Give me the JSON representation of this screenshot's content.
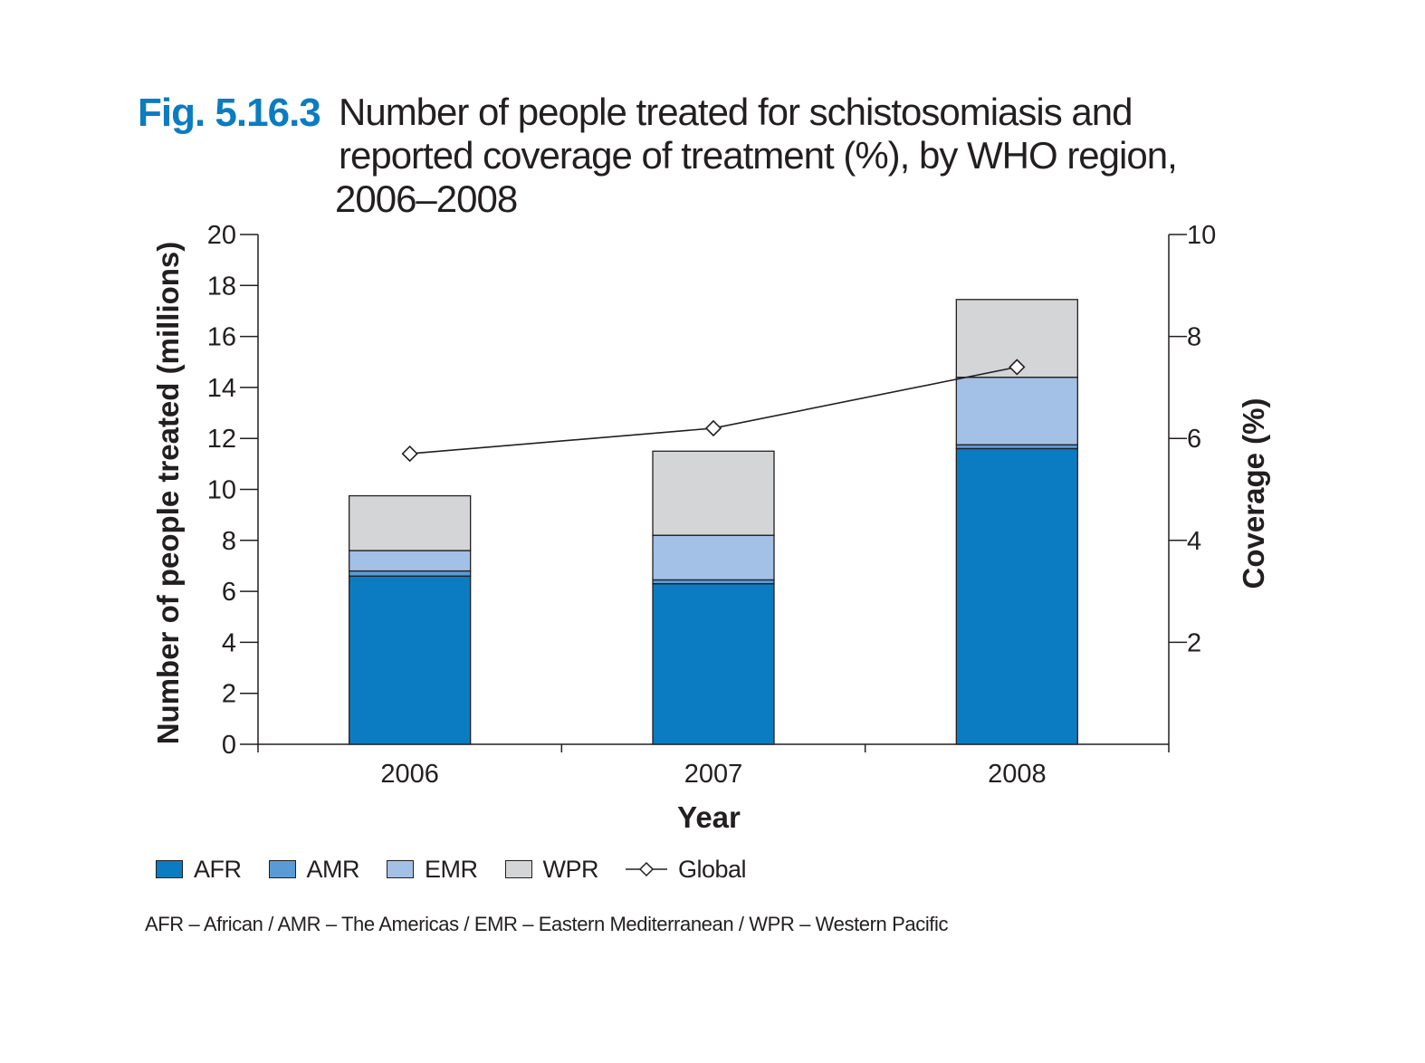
{
  "figure": {
    "label": "Fig. 5.16.3",
    "title_lines": [
      "Number of people treated for schistosomiasis and",
      "reported coverage of treatment (%), by WHO region,",
      "2006–2008"
    ]
  },
  "legend": [
    {
      "name": "AFR",
      "color": "#0b7cc1"
    },
    {
      "name": "AMR",
      "color": "#5b9bd5"
    },
    {
      "name": "EMR",
      "color": "#a3c0e6"
    },
    {
      "name": "WPR",
      "color": "#d4d5d7"
    },
    {
      "name": "Global",
      "marker": "diamond-line-icon"
    }
  ],
  "footnote": "AFR – African / AMR – The Americas / EMR – Eastern Mediterranean / WPR – Western Pacific",
  "chart_data": {
    "type": "bar",
    "stacked": true,
    "categories": [
      "2006",
      "2007",
      "2008"
    ],
    "series": [
      {
        "name": "AFR",
        "values": [
          6.6,
          6.3,
          11.6
        ],
        "color": "#0b7cc1"
      },
      {
        "name": "AMR",
        "values": [
          0.2,
          0.15,
          0.15
        ],
        "color": "#5b9bd5"
      },
      {
        "name": "EMR",
        "values": [
          0.8,
          1.75,
          2.65
        ],
        "color": "#a3c0e6"
      },
      {
        "name": "WPR",
        "values": [
          2.15,
          3.3,
          3.05
        ],
        "color": "#d4d5d7"
      }
    ],
    "line_series": [
      {
        "name": "Global",
        "axis": "right",
        "values": [
          5.7,
          6.2,
          7.4
        ],
        "marker": "diamond"
      }
    ],
    "xlabel": "Year",
    "ylabel": "Number of people treated (millions)",
    "y2label": "Coverage (%)",
    "ylim": [
      0,
      20
    ],
    "y_ticks": [
      0,
      2,
      4,
      6,
      8,
      10,
      12,
      14,
      16,
      18,
      20
    ],
    "y2lim": [
      0,
      10
    ],
    "y2_ticks": [
      2,
      4,
      6,
      8,
      10
    ],
    "grid": false,
    "legend_position": "bottom-left"
  }
}
